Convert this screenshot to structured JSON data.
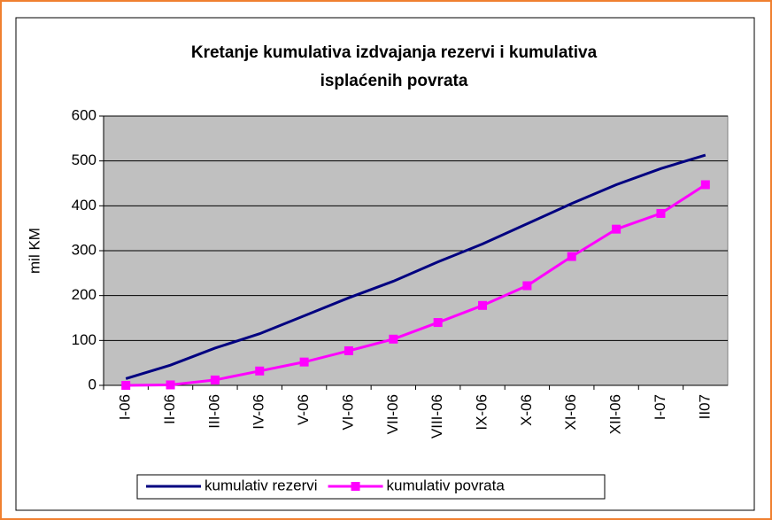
{
  "chart_data": {
    "type": "line",
    "title": [
      "Kretanje kumulativa izdvajanja rezervi i kumulativa",
      "isplaćenih povrata"
    ],
    "y_label": "mil KM",
    "categories": [
      "I-06",
      "II-06",
      "III-06",
      "IV-06",
      "V-06",
      "VI-06",
      "VII-06",
      "VIII-06",
      "IX-06",
      "X-06",
      "XI-06",
      "XII-06",
      "I-07",
      "II07"
    ],
    "series": [
      {
        "name": "kumulativ rezervi",
        "color": "#000080",
        "marker": "none",
        "values": [
          15,
          45,
          83,
          115,
          155,
          195,
          232,
          275,
          315,
          360,
          405,
          447,
          483,
          513
        ]
      },
      {
        "name": "kumulativ povrata",
        "color": "#ff00ff",
        "marker": "square",
        "values": [
          0,
          1,
          12,
          32,
          52,
          77,
          103,
          140,
          178,
          222,
          287,
          348,
          383,
          447
        ]
      }
    ],
    "ylim": [
      0,
      600
    ],
    "yticks": [
      0,
      100,
      200,
      300,
      400,
      500,
      600
    ],
    "grid": true,
    "legend": "bottom"
  }
}
